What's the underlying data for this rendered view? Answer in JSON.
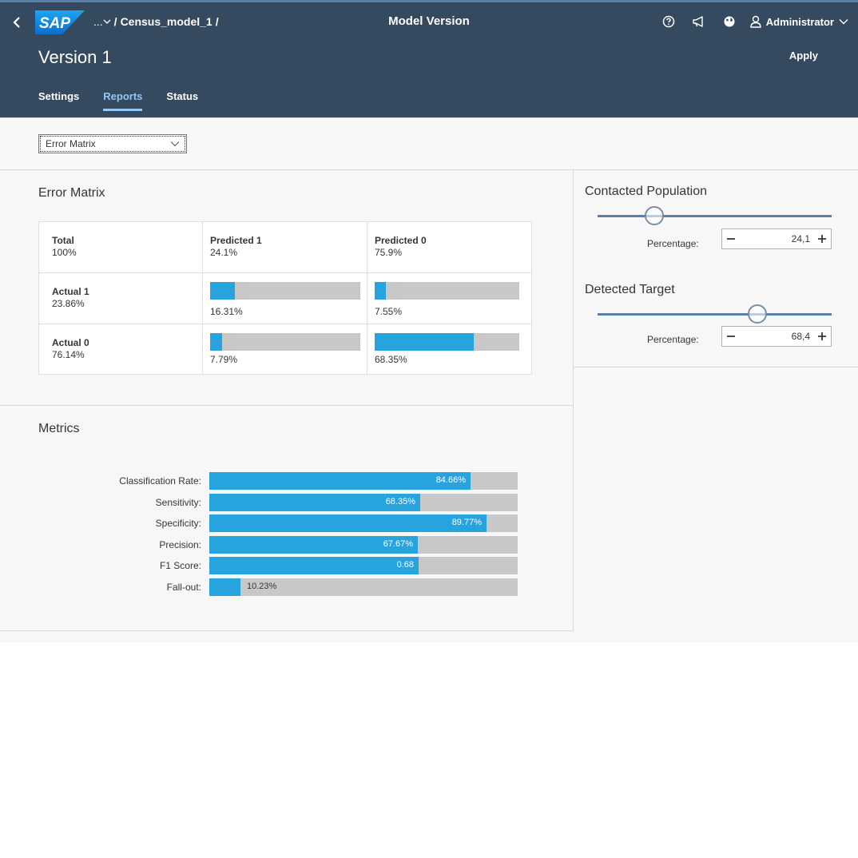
{
  "shell": {
    "logo_text": "SAP",
    "breadcrumb_more": "...",
    "breadcrumb_sep1": "/",
    "breadcrumb_item": "Census_model_1",
    "breadcrumb_sep2": "/",
    "title": "Model Version",
    "user": "Administrator"
  },
  "header": {
    "title": "Version 1",
    "apply_label": "Apply",
    "tabs": [
      {
        "label": "Settings",
        "active": false
      },
      {
        "label": "Reports",
        "active": true
      },
      {
        "label": "Status",
        "active": false
      }
    ]
  },
  "report_select": {
    "value": "Error Matrix"
  },
  "error_matrix": {
    "title": "Error Matrix",
    "total": {
      "label": "Total",
      "value": "100%"
    },
    "pred1": {
      "label": "Predicted 1",
      "value": "24.1%"
    },
    "pred0": {
      "label": "Predicted 0",
      "value": "75.9%"
    },
    "act1": {
      "label": "Actual 1",
      "value": "23.86%"
    },
    "act0": {
      "label": "Actual 0",
      "value": "76.14%"
    },
    "cells": {
      "a1p1": {
        "value": "16.31%",
        "fraction": 0.1631
      },
      "a1p0": {
        "value": "7.55%",
        "fraction": 0.0755
      },
      "a0p1": {
        "value": "7.79%",
        "fraction": 0.0779
      },
      "a0p0": {
        "value": "68.35%",
        "fraction": 0.6835
      }
    }
  },
  "metrics": {
    "title": "Metrics",
    "items": [
      {
        "label": "Classification Rate:",
        "value": "84.66%",
        "fraction": 0.8466
      },
      {
        "label": "Sensitivity:",
        "value": "68.35%",
        "fraction": 0.6835
      },
      {
        "label": "Specificity:",
        "value": "89.77%",
        "fraction": 0.8977
      },
      {
        "label": "Precision:",
        "value": "67.67%",
        "fraction": 0.6767
      },
      {
        "label": "F1 Score:",
        "value": "0.68",
        "fraction": 0.68
      },
      {
        "label": "Fall-out:",
        "value": "10.23%",
        "fraction": 0.1023
      }
    ]
  },
  "contacted": {
    "title": "Contacted Population",
    "pct_label": "Percentage:",
    "value": "24,1",
    "fraction": 0.241
  },
  "detected": {
    "title": "Detected Target",
    "pct_label": "Percentage:",
    "value": "68,4",
    "fraction": 0.684
  },
  "colors": {
    "shell": "#354a5f",
    "accent": "#27a3dd",
    "bar_bg": "#c8c8c8",
    "tab_active": "#91c8f6"
  },
  "icons": [
    "back-chevron-icon",
    "help-icon",
    "megaphone-icon",
    "globe-icon",
    "user-icon",
    "chevron-down-icon",
    "minus-icon",
    "plus-icon"
  ]
}
